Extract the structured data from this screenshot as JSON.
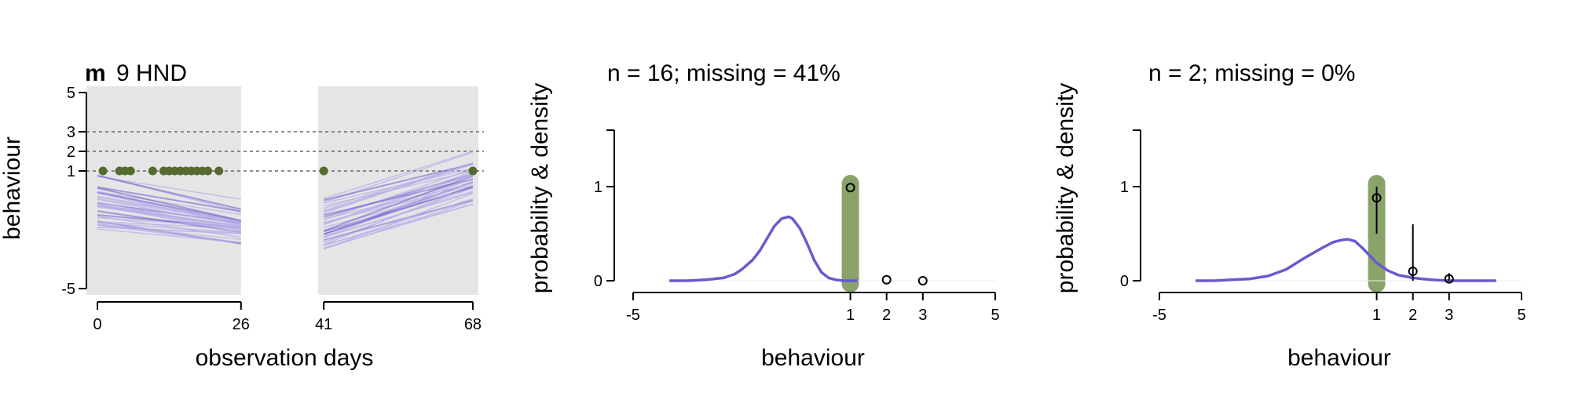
{
  "colors": {
    "line": "#6a5acd",
    "line_faint": "#b7aee8",
    "observed": "#556b2f",
    "panel_bg": "#e5e5e5",
    "highlight": "#8aa36a",
    "axis": "#000000",
    "guide": "#666666"
  },
  "chart_data": [
    {
      "type": "line",
      "title_bold": "m",
      "title": "9 HND",
      "xlabel": "observation days",
      "ylabel": "behaviour",
      "x_ticks": [
        "0",
        "26",
        "41",
        "68"
      ],
      "y_ticks": [
        "5",
        "3",
        "2",
        "1",
        "-5"
      ],
      "xlim": [
        -2,
        70
      ],
      "ylim": [
        -5,
        5
      ],
      "shaded_periods": [
        [
          -2,
          26
        ],
        [
          40,
          69
        ]
      ],
      "reference_levels": [
        3,
        2,
        1
      ],
      "observed_points": {
        "x": [
          1,
          4,
          5,
          6,
          10,
          12,
          13,
          14,
          15,
          16,
          17,
          18,
          19,
          20,
          22,
          41,
          68
        ],
        "y": [
          1,
          1,
          1,
          1,
          1,
          1,
          1,
          1,
          1,
          1,
          1,
          1,
          1,
          1,
          1,
          1,
          1
        ]
      },
      "fit_periods": [
        {
          "x": [
            0,
            26
          ],
          "mean_start": -0.6,
          "mean_end": -1.7,
          "spread_start": 1.5,
          "spread_end": 1.4,
          "n": 36
        },
        {
          "x": [
            41,
            68
          ],
          "mean_start": -1.6,
          "mean_end": 0.7,
          "spread_start": 1.4,
          "spread_end": 1.6,
          "n": 36
        }
      ]
    },
    {
      "type": "line",
      "title": "n = 16; missing = 41%",
      "xlabel": "behaviour",
      "ylabel": "probability & density",
      "x_ticks": [
        "-5",
        "1",
        "2",
        "3",
        "5"
      ],
      "y_ticks": [
        "0",
        "1"
      ],
      "xlim": [
        -5,
        5
      ],
      "ylim": [
        0,
        1.6
      ],
      "highlight_x": 1,
      "density": {
        "x": [
          -4.0,
          -3.5,
          -3.0,
          -2.5,
          -2.2,
          -2.0,
          -1.7,
          -1.5,
          -1.3,
          -1.1,
          -0.9,
          -0.8,
          -0.7,
          -0.6,
          -0.4,
          -0.2,
          0.0,
          0.2,
          0.4,
          0.6,
          0.8,
          1.0,
          1.2
        ],
        "y": [
          0.0,
          0.0,
          0.01,
          0.03,
          0.07,
          0.12,
          0.22,
          0.32,
          0.45,
          0.58,
          0.66,
          0.67,
          0.68,
          0.66,
          0.56,
          0.4,
          0.22,
          0.09,
          0.03,
          0.01,
          0.0,
          0.0,
          0.0
        ]
      },
      "probabilities": [
        {
          "x": 1,
          "y": 0.99,
          "low": 0.99,
          "high": 0.99
        },
        {
          "x": 2,
          "y": 0.01,
          "low": 0.01,
          "high": 0.01
        },
        {
          "x": 3,
          "y": 0.0,
          "low": 0.0,
          "high": 0.0
        }
      ]
    },
    {
      "type": "line",
      "title": "n = 2; missing = 0%",
      "xlabel": "behaviour",
      "ylabel": "probability & density",
      "x_ticks": [
        "-5",
        "1",
        "2",
        "3",
        "5"
      ],
      "y_ticks": [
        "0",
        "1"
      ],
      "xlim": [
        -5,
        5
      ],
      "ylim": [
        0,
        1.6
      ],
      "highlight_x": 1,
      "density": {
        "x": [
          -4.0,
          -3.5,
          -3.0,
          -2.5,
          -2.0,
          -1.5,
          -1.0,
          -0.5,
          -0.2,
          0.0,
          0.2,
          0.4,
          0.6,
          0.8,
          1.0,
          1.3,
          1.6,
          2.0,
          2.5,
          3.0,
          3.5,
          4.0,
          4.3
        ],
        "y": [
          0.0,
          0.0,
          0.01,
          0.02,
          0.05,
          0.12,
          0.24,
          0.35,
          0.41,
          0.43,
          0.44,
          0.42,
          0.35,
          0.27,
          0.19,
          0.11,
          0.06,
          0.03,
          0.01,
          0.0,
          0.0,
          0.0,
          0.0
        ]
      },
      "probabilities": [
        {
          "x": 1,
          "y": 0.88,
          "low": 0.5,
          "high": 1.0
        },
        {
          "x": 2,
          "y": 0.1,
          "low": 0.0,
          "high": 0.6
        },
        {
          "x": 3,
          "y": 0.02,
          "low": 0.0,
          "high": 0.08
        }
      ]
    }
  ]
}
